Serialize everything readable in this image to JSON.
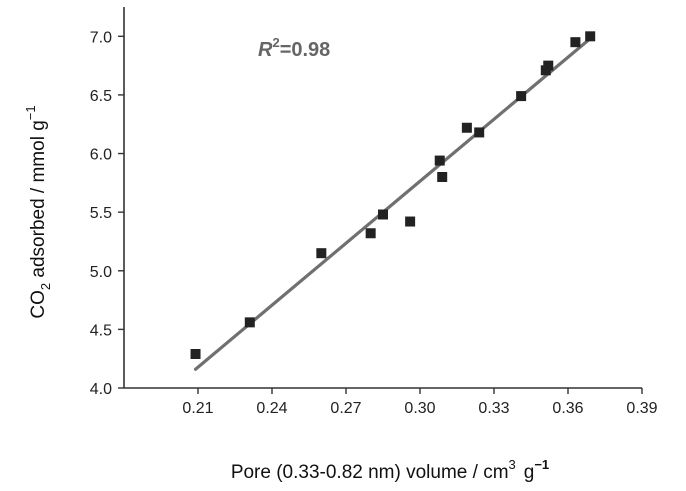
{
  "chart_data": {
    "type": "scatter",
    "title": "",
    "xlabel_main": "Pore (0.33-0.82 nm) volume / cm",
    "xlabel_sup": "3",
    "xlabel_unit": "g",
    "xlabel_unit_sup": "−1",
    "ylabel_pre": "CO",
    "ylabel_sub": "2",
    "ylabel_post": " adsorbed / mmol g",
    "ylabel_sup": "−1",
    "annotation_r": "R",
    "annotation_sup": "2",
    "annotation_value": "=0.98",
    "xlim": [
      0.18,
      0.39
    ],
    "ylim": [
      4.0,
      7.25
    ],
    "x_ticks": [
      0.21,
      0.24,
      0.27,
      0.3,
      0.33,
      0.36,
      0.39
    ],
    "x_tick_labels": [
      "0.21",
      "0.24",
      "0.27",
      "0.30",
      "0.33",
      "0.36",
      "0.39"
    ],
    "y_ticks": [
      4.0,
      4.5,
      5.0,
      5.5,
      6.0,
      6.5,
      7.0
    ],
    "y_tick_labels": [
      "4.0",
      "4.5",
      "5.0",
      "5.5",
      "6.0",
      "6.5",
      "7.0"
    ],
    "grid": false,
    "colors": {
      "marker": "#222222",
      "fit_line": "#707070",
      "axis": "#333333"
    },
    "series": [
      {
        "x": [
          0.209,
          0.231,
          0.26,
          0.28,
          0.285,
          0.296,
          0.308,
          0.309,
          0.319,
          0.324,
          0.341,
          0.351,
          0.352,
          0.363,
          0.369
        ],
        "y": [
          4.29,
          4.56,
          5.15,
          5.32,
          5.48,
          5.42,
          5.94,
          5.8,
          6.22,
          6.18,
          6.49,
          6.71,
          6.75,
          6.95,
          7.0
        ]
      }
    ],
    "fit_line": {
      "x": [
        0.209,
        0.369
      ],
      "y": [
        4.16,
        6.98
      ]
    }
  }
}
